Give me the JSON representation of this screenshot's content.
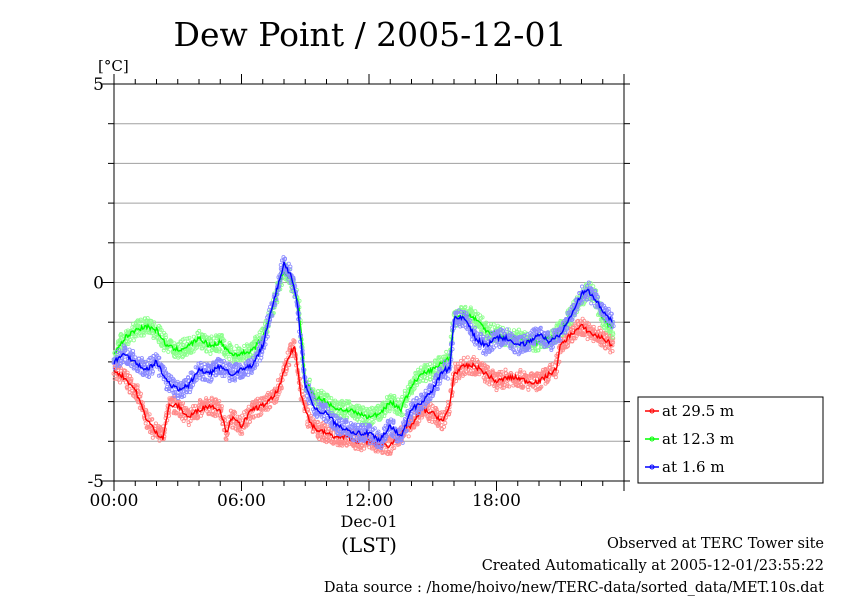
{
  "chart_data": {
    "type": "line",
    "title": "Dew Point / 2005-12-01",
    "ylabel": "[°C]",
    "xlabel": "(LST)",
    "x_date_label": "Dec-01",
    "ylim": [
      -5,
      5
    ],
    "xlim": [
      0,
      24
    ],
    "y_ticks": [
      {
        "value": 5,
        "label": "5"
      },
      {
        "value": 0,
        "label": "0"
      },
      {
        "value": -5,
        "label": "-5"
      }
    ],
    "x_ticks": [
      {
        "value": 0,
        "label": "00:00"
      },
      {
        "value": 6,
        "label": "06:00"
      },
      {
        "value": 12,
        "label": "12:00"
      },
      {
        "value": 18,
        "label": "18:00"
      }
    ],
    "grid": true,
    "legend_position": "right",
    "series": [
      {
        "name": "at 29.5 m",
        "color": "#ff0000",
        "points": [
          [
            0,
            -2.2
          ],
          [
            0.5,
            -2.4
          ],
          [
            1,
            -2.7
          ],
          [
            1.5,
            -3.4
          ],
          [
            2,
            -3.8
          ],
          [
            2.3,
            -3.9
          ],
          [
            2.6,
            -3.1
          ],
          [
            3,
            -3.1
          ],
          [
            3.5,
            -3.4
          ],
          [
            4,
            -3.2
          ],
          [
            4.5,
            -3.1
          ],
          [
            5,
            -3.2
          ],
          [
            5.3,
            -3.8
          ],
          [
            5.5,
            -3.4
          ],
          [
            6,
            -3.6
          ],
          [
            6.5,
            -3.2
          ],
          [
            7,
            -3.1
          ],
          [
            7.5,
            -2.9
          ],
          [
            7.8,
            -2.6
          ],
          [
            8.2,
            -1.9
          ],
          [
            8.5,
            -1.6
          ],
          [
            8.8,
            -2.8
          ],
          [
            9.2,
            -3.5
          ],
          [
            9.5,
            -3.7
          ],
          [
            10,
            -3.8
          ],
          [
            10.5,
            -3.9
          ],
          [
            11,
            -3.9
          ],
          [
            11.5,
            -4.0
          ],
          [
            12,
            -4.0
          ],
          [
            12.5,
            -4.1
          ],
          [
            13,
            -4.1
          ],
          [
            13.5,
            -3.8
          ],
          [
            14,
            -3.6
          ],
          [
            14.5,
            -3.2
          ],
          [
            15,
            -3.3
          ],
          [
            15.5,
            -3.5
          ],
          [
            15.8,
            -3.1
          ],
          [
            16,
            -2.3
          ],
          [
            16.5,
            -2.1
          ],
          [
            17,
            -2.1
          ],
          [
            17.5,
            -2.3
          ],
          [
            18,
            -2.5
          ],
          [
            18.5,
            -2.4
          ],
          [
            19,
            -2.4
          ],
          [
            19.5,
            -2.5
          ],
          [
            20,
            -2.5
          ],
          [
            20.5,
            -2.3
          ],
          [
            20.8,
            -2.2
          ],
          [
            21,
            -1.6
          ],
          [
            21.5,
            -1.3
          ],
          [
            22,
            -1.1
          ],
          [
            22.5,
            -1.3
          ],
          [
            23,
            -1.4
          ],
          [
            23.5,
            -1.6
          ]
        ]
      },
      {
        "name": "at 12.3 m",
        "color": "#00ff00",
        "points": [
          [
            0,
            -1.8
          ],
          [
            0.5,
            -1.4
          ],
          [
            1,
            -1.2
          ],
          [
            1.5,
            -1.1
          ],
          [
            2,
            -1.2
          ],
          [
            2.5,
            -1.6
          ],
          [
            3,
            -1.7
          ],
          [
            3.5,
            -1.6
          ],
          [
            4,
            -1.4
          ],
          [
            4.5,
            -1.6
          ],
          [
            5,
            -1.5
          ],
          [
            5.5,
            -1.8
          ],
          [
            6,
            -1.8
          ],
          [
            6.5,
            -1.7
          ],
          [
            7,
            -1.4
          ],
          [
            7.5,
            -0.6
          ],
          [
            8,
            0.3
          ],
          [
            8.3,
            0.1
          ],
          [
            8.7,
            -0.6
          ],
          [
            9,
            -2.5
          ],
          [
            9.5,
            -2.9
          ],
          [
            10,
            -3.0
          ],
          [
            10.5,
            -3.2
          ],
          [
            11,
            -3.2
          ],
          [
            11.5,
            -3.3
          ],
          [
            12,
            -3.4
          ],
          [
            12.5,
            -3.3
          ],
          [
            13,
            -3.0
          ],
          [
            13.5,
            -3.2
          ],
          [
            14,
            -2.6
          ],
          [
            14.5,
            -2.3
          ],
          [
            15,
            -2.2
          ],
          [
            15.5,
            -2.0
          ],
          [
            15.8,
            -1.9
          ],
          [
            16,
            -0.9
          ],
          [
            16.5,
            -0.8
          ],
          [
            17,
            -0.9
          ],
          [
            17.5,
            -1.2
          ],
          [
            18,
            -1.3
          ],
          [
            18.5,
            -1.4
          ],
          [
            19,
            -1.4
          ],
          [
            19.5,
            -1.5
          ],
          [
            20,
            -1.5
          ],
          [
            20.5,
            -1.4
          ],
          [
            21,
            -1.2
          ],
          [
            21.5,
            -0.8
          ],
          [
            22,
            -0.4
          ],
          [
            22.3,
            -0.2
          ],
          [
            22.6,
            -0.3
          ],
          [
            23,
            -0.9
          ],
          [
            23.5,
            -1.2
          ]
        ]
      },
      {
        "name": "at 1.6 m",
        "color": "#0000ff",
        "points": [
          [
            0,
            -2.0
          ],
          [
            0.5,
            -1.8
          ],
          [
            1,
            -2.0
          ],
          [
            1.5,
            -2.2
          ],
          [
            2,
            -2.0
          ],
          [
            2.5,
            -2.5
          ],
          [
            3,
            -2.7
          ],
          [
            3.5,
            -2.6
          ],
          [
            4,
            -2.2
          ],
          [
            4.5,
            -2.3
          ],
          [
            5,
            -2.1
          ],
          [
            5.5,
            -2.3
          ],
          [
            6,
            -2.2
          ],
          [
            6.5,
            -2.1
          ],
          [
            7,
            -1.6
          ],
          [
            7.5,
            -0.5
          ],
          [
            8,
            0.5
          ],
          [
            8.3,
            0.2
          ],
          [
            8.6,
            -0.4
          ],
          [
            9,
            -2.6
          ],
          [
            9.5,
            -3.2
          ],
          [
            10,
            -3.3
          ],
          [
            10.5,
            -3.6
          ],
          [
            11,
            -3.7
          ],
          [
            11.5,
            -3.8
          ],
          [
            12,
            -3.8
          ],
          [
            12.5,
            -4.0
          ],
          [
            13,
            -3.6
          ],
          [
            13.5,
            -3.9
          ],
          [
            14,
            -3.2
          ],
          [
            14.5,
            -3.0
          ],
          [
            15,
            -2.7
          ],
          [
            15.5,
            -2.2
          ],
          [
            15.8,
            -2.2
          ],
          [
            16,
            -0.9
          ],
          [
            16.5,
            -0.9
          ],
          [
            17,
            -1.4
          ],
          [
            17.5,
            -1.6
          ],
          [
            18,
            -1.4
          ],
          [
            18.5,
            -1.4
          ],
          [
            19,
            -1.6
          ],
          [
            19.5,
            -1.5
          ],
          [
            20,
            -1.3
          ],
          [
            20.5,
            -1.5
          ],
          [
            21,
            -1.3
          ],
          [
            21.5,
            -0.8
          ],
          [
            22,
            -0.3
          ],
          [
            22.3,
            -0.2
          ],
          [
            22.6,
            -0.4
          ],
          [
            23,
            -0.7
          ],
          [
            23.5,
            -1.0
          ]
        ]
      }
    ]
  },
  "footer": {
    "line1": "Observed at TERC Tower site",
    "line2": "Created Automatically at 2005-12-01/23:55:22",
    "line3": "Data source : /home/hoivo/new/TERC-data/sorted_data/MET.10s.dat"
  }
}
